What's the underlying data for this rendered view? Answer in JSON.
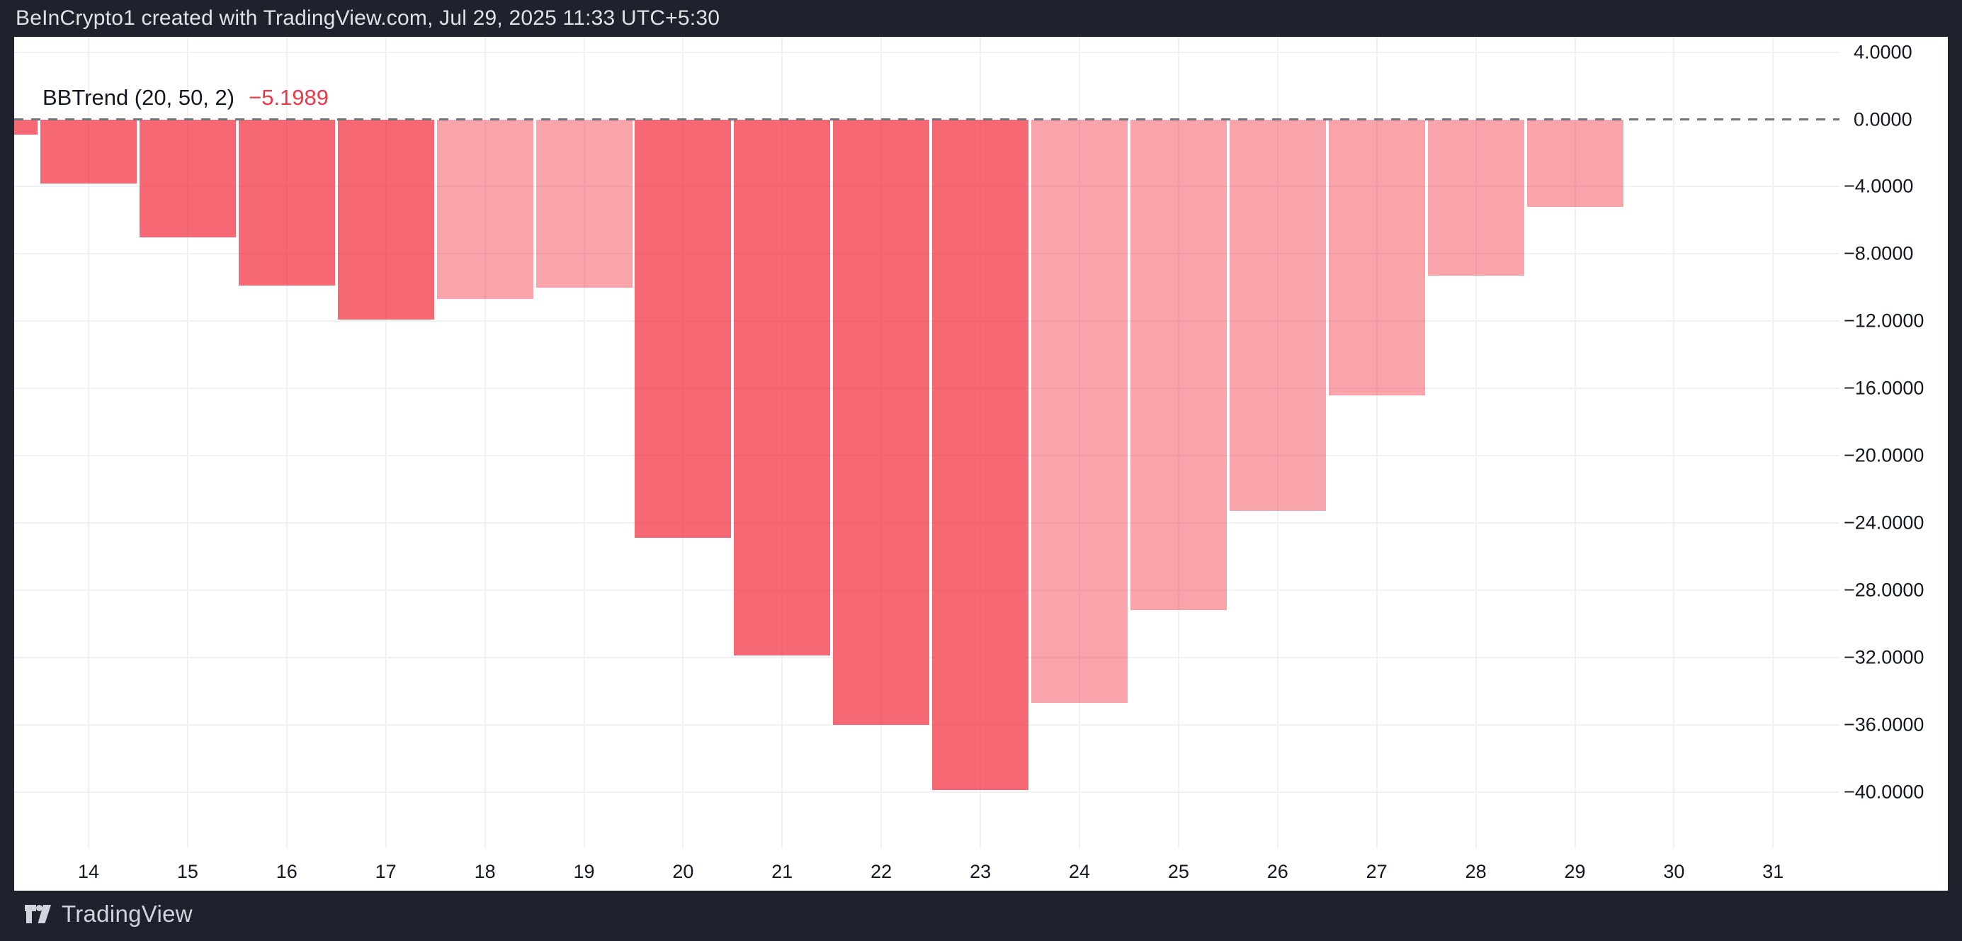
{
  "header": {
    "title": "BeInCrypto1 created with TradingView.com, Jul 29, 2025 11:33 UTC+5:30"
  },
  "legend": {
    "indicator": "BBTrend (20, 50, 2)",
    "value": "−5.1989"
  },
  "footer": {
    "brand": "TradingView"
  },
  "colors": {
    "frame_bg": "#1E222D",
    "pane_bg": "#FFFFFF",
    "grid": "#EFF1F4",
    "zero_dash": "#6F7380",
    "axis_text": "#131722",
    "legend_text": "#131722",
    "title_text": "#DFE1E5",
    "footer_text": "#D1D4DC",
    "value_red": "#F23645",
    "bar_dark": "rgba(242,54,69,0.75)",
    "bar_light": "rgba(242,54,69,0.45)"
  },
  "chart_data": {
    "type": "bar",
    "title": "BBTrend (20, 50, 2)",
    "xlabel": "",
    "ylabel": "",
    "grid": true,
    "zero_line": "dashed",
    "legend_position": "top-left",
    "x_ticks": [
      "14",
      "15",
      "16",
      "17",
      "18",
      "19",
      "20",
      "21",
      "22",
      "23",
      "24",
      "25",
      "26",
      "27",
      "28",
      "29",
      "30",
      "31"
    ],
    "x_tick_values": [
      14,
      15,
      16,
      17,
      18,
      19,
      20,
      21,
      22,
      23,
      24,
      25,
      26,
      27,
      28,
      29,
      30,
      31
    ],
    "y_ticks": [
      "4.0000",
      "0.0000",
      "−4.0000",
      "−8.0000",
      "−12.0000",
      "−16.0000",
      "−20.0000",
      "−24.0000",
      "−28.0000",
      "−32.0000",
      "−36.0000",
      "−40.0000"
    ],
    "y_tick_values": [
      4,
      0,
      -4,
      -8,
      -12,
      -16,
      -20,
      -24,
      -28,
      -32,
      -36,
      -40
    ],
    "ylim": [
      -43.5,
      4.9
    ],
    "bars": [
      {
        "x": 13,
        "value": -0.9,
        "tone": "dark",
        "clipped_left": true
      },
      {
        "x": 14,
        "value": -3.8,
        "tone": "dark"
      },
      {
        "x": 15,
        "value": -7.0,
        "tone": "dark"
      },
      {
        "x": 16,
        "value": -9.9,
        "tone": "dark"
      },
      {
        "x": 17,
        "value": -11.9,
        "tone": "dark"
      },
      {
        "x": 18,
        "value": -10.7,
        "tone": "light"
      },
      {
        "x": 19,
        "value": -10.0,
        "tone": "light"
      },
      {
        "x": 20,
        "value": -24.9,
        "tone": "dark"
      },
      {
        "x": 21,
        "value": -31.9,
        "tone": "dark"
      },
      {
        "x": 22,
        "value": -36.0,
        "tone": "dark"
      },
      {
        "x": 23,
        "value": -39.9,
        "tone": "dark"
      },
      {
        "x": 24,
        "value": -34.7,
        "tone": "light"
      },
      {
        "x": 25,
        "value": -29.2,
        "tone": "light"
      },
      {
        "x": 26,
        "value": -23.3,
        "tone": "light"
      },
      {
        "x": 27,
        "value": -16.4,
        "tone": "light"
      },
      {
        "x": 28,
        "value": -9.3,
        "tone": "light"
      },
      {
        "x": 29,
        "value": -5.1989,
        "tone": "light"
      }
    ]
  }
}
